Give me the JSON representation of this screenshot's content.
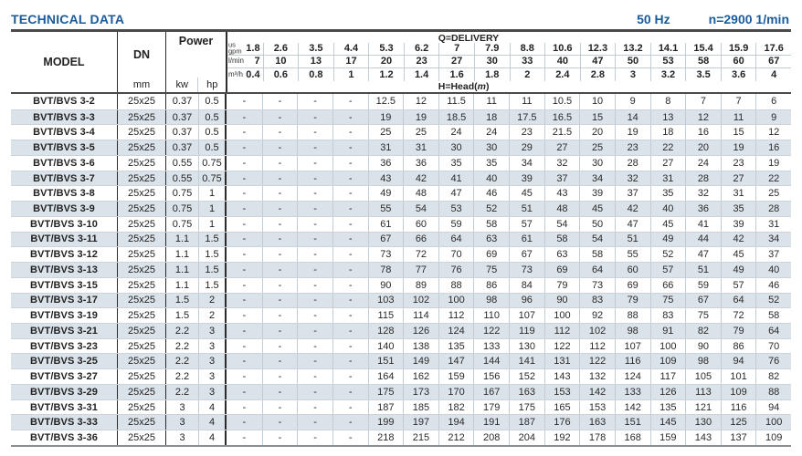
{
  "header": {
    "title": "TECHNICAL DATA",
    "frequency": "50 Hz",
    "speed": "n=2900 1/min"
  },
  "colors": {
    "accent_blue": "#1a5b9c",
    "alt_row": "#dbe3ea",
    "grid_line": "#c3ccd3",
    "dark_line": "#2b2b2b"
  },
  "table": {
    "columns": {
      "model": "MODEL",
      "dn": "DN",
      "dn_unit": "mm",
      "power": "Power",
      "kw": "kw",
      "hp": "hp"
    },
    "delivery": {
      "label": "Q=DELIVERY",
      "head_label": "H=Head",
      "head_open": "(",
      "head_unit": "m",
      "head_close": ")",
      "unit_rows": [
        {
          "label_lines": [
            "us",
            "gpm"
          ],
          "values": [
            "1.8",
            "2.6",
            "3.5",
            "4.4",
            "5.3",
            "6.2",
            "7",
            "7.9",
            "8.8",
            "10.6",
            "12.3",
            "13.2",
            "14.1",
            "15.4",
            "15.9",
            "17.6"
          ]
        },
        {
          "label_lines": [
            "l/min"
          ],
          "values": [
            "7",
            "10",
            "13",
            "17",
            "20",
            "23",
            "27",
            "30",
            "33",
            "40",
            "47",
            "50",
            "53",
            "58",
            "60",
            "67"
          ]
        },
        {
          "label_lines": [
            "m³/h"
          ],
          "values": [
            "0.4",
            "0.6",
            "0.8",
            "1",
            "1.2",
            "1.4",
            "1.6",
            "1.8",
            "2",
            "2.4",
            "2.8",
            "3",
            "3.2",
            "3.5",
            "3.6",
            "4"
          ]
        }
      ]
    },
    "rows": [
      {
        "model": "BVT/BVS 3-2",
        "dn": "25x25",
        "kw": "0.37",
        "hp": "0.5",
        "head": [
          "-",
          "-",
          "-",
          "-",
          "12.5",
          "12",
          "11.5",
          "11",
          "11",
          "10.5",
          "10",
          "9",
          "8",
          "7",
          "7",
          "6"
        ]
      },
      {
        "model": "BVT/BVS 3-3",
        "dn": "25x25",
        "kw": "0.37",
        "hp": "0.5",
        "head": [
          "-",
          "-",
          "-",
          "-",
          "19",
          "19",
          "18.5",
          "18",
          "17.5",
          "16.5",
          "15",
          "14",
          "13",
          "12",
          "11",
          "9"
        ]
      },
      {
        "model": "BVT/BVS 3-4",
        "dn": "25x25",
        "kw": "0.37",
        "hp": "0.5",
        "head": [
          "-",
          "-",
          "-",
          "-",
          "25",
          "25",
          "24",
          "24",
          "23",
          "21.5",
          "20",
          "19",
          "18",
          "16",
          "15",
          "12"
        ]
      },
      {
        "model": "BVT/BVS 3-5",
        "dn": "25x25",
        "kw": "0.37",
        "hp": "0.5",
        "head": [
          "-",
          "-",
          "-",
          "-",
          "31",
          "31",
          "30",
          "30",
          "29",
          "27",
          "25",
          "23",
          "22",
          "20",
          "19",
          "16"
        ]
      },
      {
        "model": "BVT/BVS 3-6",
        "dn": "25x25",
        "kw": "0.55",
        "hp": "0.75",
        "head": [
          "-",
          "-",
          "-",
          "-",
          "36",
          "36",
          "35",
          "35",
          "34",
          "32",
          "30",
          "28",
          "27",
          "24",
          "23",
          "19"
        ]
      },
      {
        "model": "BVT/BVS 3-7",
        "dn": "25x25",
        "kw": "0.55",
        "hp": "0.75",
        "head": [
          "-",
          "-",
          "-",
          "-",
          "43",
          "42",
          "41",
          "40",
          "39",
          "37",
          "34",
          "32",
          "31",
          "28",
          "27",
          "22"
        ]
      },
      {
        "model": "BVT/BVS 3-8",
        "dn": "25x25",
        "kw": "0.75",
        "hp": "1",
        "head": [
          "-",
          "-",
          "-",
          "-",
          "49",
          "48",
          "47",
          "46",
          "45",
          "43",
          "39",
          "37",
          "35",
          "32",
          "31",
          "25"
        ]
      },
      {
        "model": "BVT/BVS 3-9",
        "dn": "25x25",
        "kw": "0.75",
        "hp": "1",
        "head": [
          "-",
          "-",
          "-",
          "-",
          "55",
          "54",
          "53",
          "52",
          "51",
          "48",
          "45",
          "42",
          "40",
          "36",
          "35",
          "28"
        ]
      },
      {
        "model": "BVT/BVS 3-10",
        "dn": "25x25",
        "kw": "0.75",
        "hp": "1",
        "head": [
          "-",
          "-",
          "-",
          "-",
          "61",
          "60",
          "59",
          "58",
          "57",
          "54",
          "50",
          "47",
          "45",
          "41",
          "39",
          "31"
        ]
      },
      {
        "model": "BVT/BVS 3-11",
        "dn": "25x25",
        "kw": "1.1",
        "hp": "1.5",
        "head": [
          "-",
          "-",
          "-",
          "-",
          "67",
          "66",
          "64",
          "63",
          "61",
          "58",
          "54",
          "51",
          "49",
          "44",
          "42",
          "34"
        ]
      },
      {
        "model": "BVT/BVS 3-12",
        "dn": "25x25",
        "kw": "1.1",
        "hp": "1.5",
        "head": [
          "-",
          "-",
          "-",
          "-",
          "73",
          "72",
          "70",
          "69",
          "67",
          "63",
          "58",
          "55",
          "52",
          "47",
          "45",
          "37"
        ]
      },
      {
        "model": "BVT/BVS 3-13",
        "dn": "25x25",
        "kw": "1.1",
        "hp": "1.5",
        "head": [
          "-",
          "-",
          "-",
          "-",
          "78",
          "77",
          "76",
          "75",
          "73",
          "69",
          "64",
          "60",
          "57",
          "51",
          "49",
          "40"
        ]
      },
      {
        "model": "BVT/BVS 3-15",
        "dn": "25x25",
        "kw": "1.1",
        "hp": "1.5",
        "head": [
          "-",
          "-",
          "-",
          "-",
          "90",
          "89",
          "88",
          "86",
          "84",
          "79",
          "73",
          "69",
          "66",
          "59",
          "57",
          "46"
        ]
      },
      {
        "model": "BVT/BVS 3-17",
        "dn": "25x25",
        "kw": "1.5",
        "hp": "2",
        "head": [
          "-",
          "-",
          "-",
          "-",
          "103",
          "102",
          "100",
          "98",
          "96",
          "90",
          "83",
          "79",
          "75",
          "67",
          "64",
          "52"
        ]
      },
      {
        "model": "BVT/BVS 3-19",
        "dn": "25x25",
        "kw": "1.5",
        "hp": "2",
        "head": [
          "-",
          "-",
          "-",
          "-",
          "115",
          "114",
          "112",
          "110",
          "107",
          "100",
          "92",
          "88",
          "83",
          "75",
          "72",
          "58"
        ]
      },
      {
        "model": "BVT/BVS 3-21",
        "dn": "25x25",
        "kw": "2.2",
        "hp": "3",
        "head": [
          "-",
          "-",
          "-",
          "-",
          "128",
          "126",
          "124",
          "122",
          "119",
          "112",
          "102",
          "98",
          "91",
          "82",
          "79",
          "64"
        ]
      },
      {
        "model": "BVT/BVS 3-23",
        "dn": "25x25",
        "kw": "2.2",
        "hp": "3",
        "head": [
          "-",
          "-",
          "-",
          "-",
          "140",
          "138",
          "135",
          "133",
          "130",
          "122",
          "112",
          "107",
          "100",
          "90",
          "86",
          "70"
        ]
      },
      {
        "model": "BVT/BVS 3-25",
        "dn": "25x25",
        "kw": "2.2",
        "hp": "3",
        "head": [
          "-",
          "-",
          "-",
          "-",
          "151",
          "149",
          "147",
          "144",
          "141",
          "131",
          "122",
          "116",
          "109",
          "98",
          "94",
          "76"
        ]
      },
      {
        "model": "BVT/BVS 3-27",
        "dn": "25x25",
        "kw": "2.2",
        "hp": "3",
        "head": [
          "-",
          "-",
          "-",
          "-",
          "164",
          "162",
          "159",
          "156",
          "152",
          "143",
          "132",
          "124",
          "117",
          "105",
          "101",
          "82"
        ]
      },
      {
        "model": "BVT/BVS 3-29",
        "dn": "25x25",
        "kw": "2.2",
        "hp": "3",
        "head": [
          "-",
          "-",
          "-",
          "-",
          "175",
          "173",
          "170",
          "167",
          "163",
          "153",
          "142",
          "133",
          "126",
          "113",
          "109",
          "88"
        ]
      },
      {
        "model": "BVT/BVS 3-31",
        "dn": "25x25",
        "kw": "3",
        "hp": "4",
        "head": [
          "-",
          "-",
          "-",
          "-",
          "187",
          "185",
          "182",
          "179",
          "175",
          "165",
          "153",
          "142",
          "135",
          "121",
          "116",
          "94"
        ]
      },
      {
        "model": "BVT/BVS 3-33",
        "dn": "25x25",
        "kw": "3",
        "hp": "4",
        "head": [
          "-",
          "-",
          "-",
          "-",
          "199",
          "197",
          "194",
          "191",
          "187",
          "176",
          "163",
          "151",
          "145",
          "130",
          "125",
          "100"
        ]
      },
      {
        "model": "BVT/BVS 3-36",
        "dn": "25x25",
        "kw": "3",
        "hp": "4",
        "head": [
          "-",
          "-",
          "-",
          "-",
          "218",
          "215",
          "212",
          "208",
          "204",
          "192",
          "178",
          "168",
          "159",
          "143",
          "137",
          "109"
        ]
      }
    ]
  }
}
